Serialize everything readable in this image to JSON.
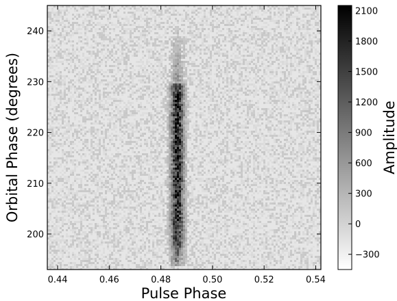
{
  "chart_data": {
    "type": "heatmap",
    "xlabel": "Pulse Phase",
    "ylabel": "Orbital Phase (degrees)",
    "xlim": [
      0.436,
      0.542
    ],
    "ylim": [
      193,
      245
    ],
    "x_ticks": [
      0.44,
      0.46,
      0.48,
      0.5,
      0.52,
      0.54
    ],
    "x_tick_labels": [
      "0.44",
      "0.46",
      "0.48",
      "0.50",
      "0.52",
      "0.54"
    ],
    "y_ticks": [
      200,
      210,
      220,
      230,
      240
    ],
    "y_tick_labels": [
      "200",
      "210",
      "220",
      "230",
      "240"
    ],
    "colorbar": {
      "label": "Amplitude",
      "range": [
        -450,
        2150
      ],
      "colormap": "gray_r",
      "ticks": [
        -300,
        0,
        300,
        600,
        900,
        1200,
        1500,
        1800,
        2100
      ],
      "tick_labels": [
        "−300",
        "0",
        "300",
        "600",
        "900",
        "1200",
        "1500",
        "1800",
        "2100"
      ]
    },
    "features": [
      {
        "description": "pulse profile",
        "pulse_phase_center": 0.486,
        "pulse_phase_width": 0.006,
        "orbital_phase_range": [
          195,
          230
        ],
        "peak_amplitude": 2000
      }
    ],
    "background_amplitude": 0
  },
  "colors": {
    "frame": "#000000",
    "background": "#ffffff"
  }
}
